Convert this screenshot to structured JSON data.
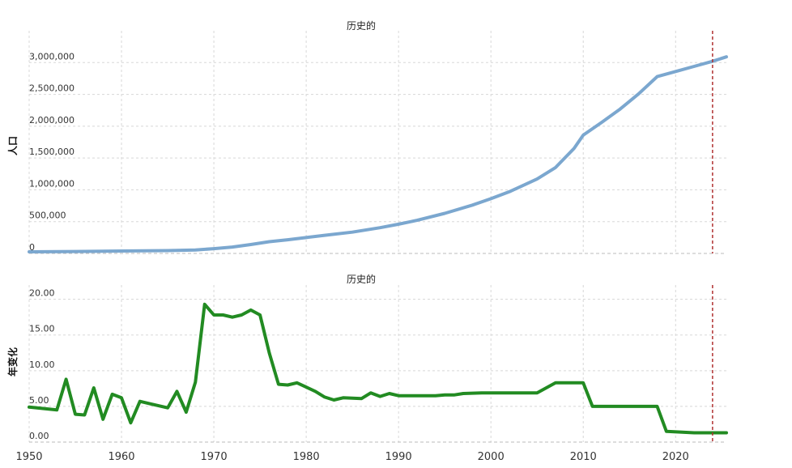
{
  "chart_data": [
    {
      "type": "line",
      "title": "历史的",
      "xlabel": "",
      "ylabel": "人口",
      "xlim": [
        1950,
        2025.5
      ],
      "ylim": [
        0,
        3500000
      ],
      "yticks": [
        0,
        500000,
        1000000,
        1500000,
        2000000,
        2500000,
        3000000
      ],
      "ytick_labels": [
        "0",
        "500,000",
        "1,000,000",
        "1,500,000",
        "2,000,000",
        "2,500,000",
        "3,000,000"
      ],
      "xticks": [
        1950,
        1960,
        1970,
        1980,
        1990,
        2000,
        2010,
        2020
      ],
      "grid": true,
      "marker_year": 2024,
      "series": [
        {
          "name": "人口",
          "color": "#7ba7cf",
          "x": [
            1950,
            1955,
            1960,
            1965,
            1968,
            1970,
            1972,
            1974,
            1976,
            1978,
            1980,
            1982,
            1985,
            1988,
            1990,
            1992,
            1995,
            1998,
            2000,
            2002,
            2005,
            2007,
            2009,
            2010,
            2012,
            2014,
            2016,
            2018,
            2020,
            2022,
            2024,
            2025.5
          ],
          "y": [
            25000,
            30000,
            38000,
            45000,
            55000,
            75000,
            100000,
            140000,
            185000,
            215000,
            250000,
            285000,
            335000,
            405000,
            460000,
            520000,
            630000,
            760000,
            860000,
            970000,
            1170000,
            1350000,
            1650000,
            1860000,
            2060000,
            2270000,
            2510000,
            2780000,
            2860000,
            2940000,
            3020000,
            3090000
          ]
        }
      ]
    },
    {
      "type": "line",
      "title": "历史的",
      "xlabel": "",
      "ylabel": "年变化",
      "xlim": [
        1950,
        2025.5
      ],
      "ylim": [
        0,
        22
      ],
      "yticks": [
        0,
        5,
        10,
        15,
        20
      ],
      "ytick_labels": [
        "0.00",
        "5.00",
        "10.00",
        "15.00",
        "20.00"
      ],
      "xticks": [
        1950,
        1960,
        1970,
        1980,
        1990,
        2000,
        2010,
        2020
      ],
      "grid": true,
      "marker_year": 2024,
      "series": [
        {
          "name": "年变化",
          "color": "#228b22",
          "x": [
            1950,
            1953,
            1954,
            1955,
            1956,
            1957,
            1958,
            1959,
            1960,
            1961,
            1962,
            1963,
            1965,
            1966,
            1967,
            1968,
            1969,
            1970,
            1971,
            1972,
            1973,
            1974,
            1975,
            1976,
            1977,
            1978,
            1979,
            1980,
            1981,
            1982,
            1983,
            1984,
            1986,
            1987,
            1988,
            1989,
            1990,
            1994,
            1995,
            1996,
            1997,
            1999,
            2000,
            2002,
            2005,
            2007,
            2010,
            2011,
            2014,
            2018,
            2019,
            2022,
            2025.5
          ],
          "y": [
            4.9,
            4.5,
            8.8,
            3.9,
            3.8,
            7.6,
            3.2,
            6.7,
            6.2,
            2.7,
            5.7,
            5.4,
            4.8,
            7.1,
            4.2,
            8.4,
            19.3,
            17.8,
            17.8,
            17.5,
            17.8,
            18.5,
            17.8,
            12.5,
            8.1,
            8.0,
            8.3,
            7.7,
            7.1,
            6.3,
            5.9,
            6.2,
            6.1,
            6.9,
            6.4,
            6.8,
            6.5,
            6.5,
            6.6,
            6.6,
            6.8,
            6.9,
            6.9,
            6.9,
            6.9,
            8.3,
            8.3,
            5.0,
            5.0,
            5.0,
            1.5,
            1.3,
            1.3
          ]
        }
      ]
    }
  ]
}
